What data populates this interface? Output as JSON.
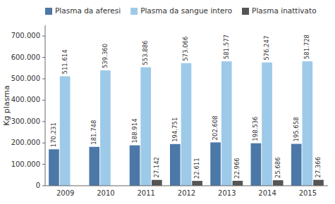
{
  "chart_data": {
    "type": "bar",
    "ylabel": "Kg plasma",
    "categories": [
      "2009",
      "2010",
      "2011",
      "2012",
      "2013",
      "2014",
      "2015"
    ],
    "series": [
      {
        "name": "Plasma da aferesi",
        "color": "#4c78a8",
        "values": [
          170231,
          181748,
          188914,
          194751,
          202608,
          198536,
          195658
        ],
        "value_labels": [
          "170.231",
          "181.748",
          "188.914",
          "194.751",
          "202.608",
          "198.536",
          "195.658"
        ]
      },
      {
        "name": "Plasma da sangue intero",
        "color": "#9ecae9",
        "values": [
          511614,
          539360,
          553886,
          573066,
          581577,
          576247,
          581728
        ],
        "value_labels": [
          "511.614",
          "539.360",
          "553.886",
          "573.066",
          "581.577",
          "576.247",
          "581.728"
        ]
      },
      {
        "name": "Plasma inattivato",
        "color": "#555555",
        "values": [
          0,
          0,
          27142,
          22611,
          22966,
          25686,
          27366
        ],
        "value_labels": [
          null,
          null,
          "27.142",
          "22.611",
          "22.966",
          "25.686",
          "27.366"
        ]
      }
    ],
    "ylim": [
      0,
      750000
    ],
    "yticks": [
      0,
      {
        "value": 100000,
        "label": "100.000"
      },
      {
        "value": 200000,
        "label": "200.000"
      },
      {
        "value": 300000,
        "label": "300.000"
      },
      {
        "value": 400000,
        "label": "400.000"
      },
      {
        "value": 500000,
        "label": "500.000"
      },
      {
        "value": 600000,
        "label": "600.000"
      },
      {
        "value": 700000,
        "label": "700.000"
      }
    ],
    "data_labels": true,
    "legend": "top",
    "grid": false
  }
}
